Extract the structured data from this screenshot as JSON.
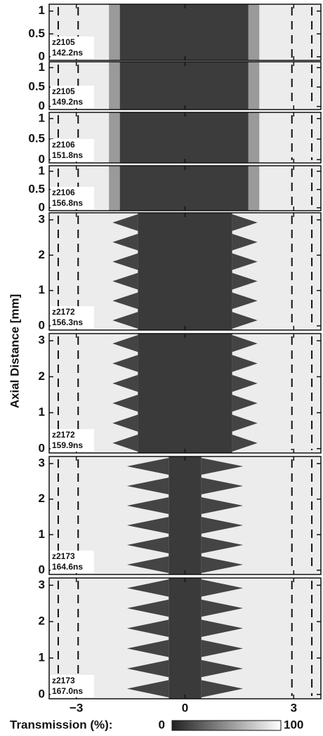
{
  "chart_data": {
    "type": "image-panels",
    "y_label": "Axial Distance [mm]",
    "xlim": [
      -3.75,
      3.75
    ],
    "xticks": [
      {
        "value": -3,
        "label": "−3"
      },
      0,
      3
    ],
    "guide_lines": [
      -3.5,
      -2.95,
      2.95,
      3.5
    ],
    "panels": [
      {
        "shot": "z2105",
        "time": "142.2ns",
        "ylim": [
          -0.08,
          1.15
        ],
        "yticks": [
          0,
          0.5,
          1
        ]
      },
      {
        "shot": "z2105",
        "time": "149.2ns",
        "ylim": [
          -0.08,
          1.15
        ],
        "yticks": [
          0,
          0.5,
          1
        ]
      },
      {
        "shot": "z2106",
        "time": "151.8ns",
        "ylim": [
          -0.08,
          1.15
        ],
        "yticks": [
          0,
          0.5,
          1
        ]
      },
      {
        "shot": "z2106",
        "time": "156.8ns",
        "ylim": [
          -0.08,
          1.15
        ],
        "yticks": [
          0,
          0.5,
          1
        ]
      },
      {
        "shot": "z2172",
        "time": "156.3ns",
        "ylim": [
          -0.12,
          3.2
        ],
        "yticks": [
          0,
          1,
          2,
          3
        ]
      },
      {
        "shot": "z2172",
        "time": "159.9ns",
        "ylim": [
          -0.12,
          3.2
        ],
        "yticks": [
          0,
          1,
          2,
          3
        ]
      },
      {
        "shot": "z2173",
        "time": "164.6ns",
        "ylim": [
          -0.12,
          3.2
        ],
        "yticks": [
          0,
          1,
          2,
          3
        ]
      },
      {
        "shot": "z2173",
        "time": "167.0ns",
        "ylim": [
          -0.12,
          3.2
        ],
        "yticks": [
          0,
          1,
          2,
          3
        ]
      }
    ],
    "colorbar": {
      "label": "Transmission (%):",
      "ticks": [
        0,
        100
      ]
    }
  }
}
